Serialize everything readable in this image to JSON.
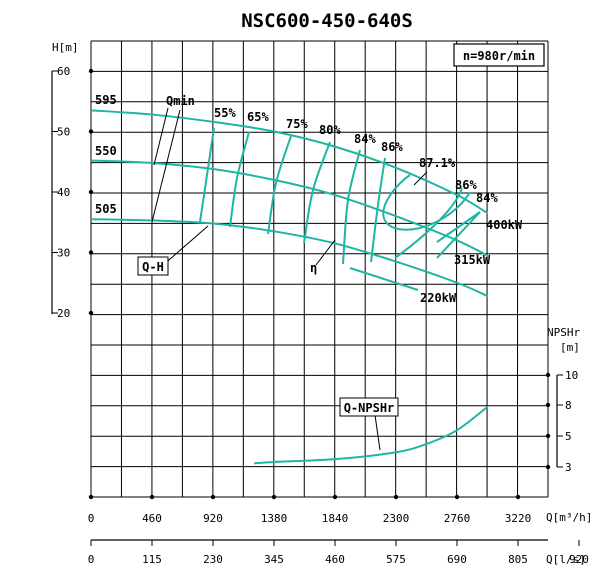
{
  "chart_data": {
    "type": "line",
    "title": "NSC600-450-640S",
    "speed_label": "n=980r/min",
    "x_axis_q": {
      "label": "Q[m³/h]",
      "ticks": [
        "0",
        "460",
        "920",
        "1380",
        "1840",
        "2300",
        "2760",
        "3220"
      ],
      "range": [
        0,
        3220
      ]
    },
    "x_axis_ls": {
      "label": "Q[l/s]",
      "ticks": [
        "0",
        "115",
        "230",
        "345",
        "460",
        "575",
        "690",
        "805",
        "920"
      ]
    },
    "y_axis_h": {
      "label": "H[m]",
      "ticks": [
        "60",
        "50",
        "40",
        "30",
        "20"
      ],
      "range": [
        20,
        60
      ]
    },
    "y_axis_npsh": {
      "label": "NPSHr",
      "unit": "[m]",
      "ticks": [
        "10",
        "8",
        "5",
        "3"
      ]
    },
    "impeller_labels": [
      "595",
      "550",
      "505"
    ],
    "annotations": {
      "qmin": "Qmin",
      "qh": "Q-H",
      "eta": "η",
      "qnpsh": "Q-NPSHr",
      "power": [
        "400kW",
        "315kW",
        "220kW"
      ],
      "efficiency": [
        "55%",
        "65%",
        "75%",
        "80%",
        "84%",
        "86%",
        "87.1%",
        "86%",
        "84%"
      ]
    },
    "series": [
      {
        "name": "595",
        "x": [
          0,
          460,
          920,
          1380,
          1840,
          2300,
          2760,
          2990
        ],
        "y": [
          53.5,
          52.8,
          51.6,
          50.0,
          47.5,
          44.0,
          39.5,
          36.5
        ]
      },
      {
        "name": "550",
        "x": [
          0,
          460,
          920,
          1380,
          1840,
          2300,
          2760,
          2990
        ],
        "y": [
          45.2,
          44.8,
          43.8,
          42.0,
          39.5,
          36.0,
          32.0,
          29.5
        ]
      },
      {
        "name": "505",
        "x": [
          0,
          460,
          920,
          1380,
          1840,
          2300,
          2760,
          2990
        ],
        "y": [
          35.5,
          35.3,
          34.8,
          33.5,
          31.5,
          28.5,
          25.0,
          22.8
        ]
      },
      {
        "name": "Q-NPSHr",
        "x": [
          1230,
          1380,
          1840,
          2300,
          2530,
          2760,
          2990
        ],
        "y": [
          3.6,
          3.7,
          3.9,
          4.4,
          5.0,
          6.0,
          7.7
        ]
      }
    ],
    "grid": true
  }
}
